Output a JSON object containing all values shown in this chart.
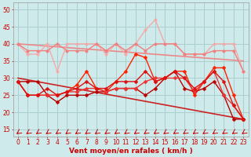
{
  "background_color": "#ceeaea",
  "grid_color": "#aacfcf",
  "x_labels": [
    "0",
    "1",
    "2",
    "3",
    "4",
    "5",
    "6",
    "7",
    "8",
    "9",
    "10",
    "11",
    "12",
    "13",
    "14",
    "15",
    "16",
    "17",
    "18",
    "19",
    "20",
    "21",
    "22",
    "23"
  ],
  "xlabel": "Vent moyen/en rafales ( km/h )",
  "ylabel_ticks": [
    15,
    20,
    25,
    30,
    35,
    40,
    45,
    50
  ],
  "ylim": [
    13,
    52
  ],
  "xlim": [
    -0.5,
    23.5
  ],
  "lines": [
    {
      "color": "#f4aaaa",
      "linewidth": 1.0,
      "marker": "o",
      "markersize": 2.5,
      "data": [
        40,
        37,
        37,
        40,
        32,
        40,
        40,
        40,
        40,
        37,
        40,
        37,
        40,
        44,
        47,
        40,
        40,
        37,
        37,
        37,
        40,
        40,
        40,
        32
      ]
    },
    {
      "color": "#f08080",
      "linewidth": 1.0,
      "marker": "o",
      "markersize": 2.5,
      "data": [
        40,
        38,
        38,
        38,
        40,
        38,
        38,
        38,
        40,
        38,
        40,
        38,
        40,
        38,
        40,
        40,
        40,
        37,
        37,
        37,
        38,
        38,
        38,
        32
      ]
    },
    {
      "color": "#cc2222",
      "linewidth": 1.2,
      "marker": "none",
      "markersize": 0,
      "data": [
        30,
        null,
        null,
        null,
        null,
        null,
        null,
        null,
        null,
        null,
        null,
        null,
        null,
        null,
        null,
        null,
        null,
        null,
        null,
        null,
        null,
        null,
        null,
        18
      ]
    },
    {
      "color": "#ee8888",
      "linewidth": 1.2,
      "marker": "none",
      "markersize": 0,
      "data": [
        40,
        null,
        null,
        null,
        null,
        null,
        null,
        null,
        null,
        null,
        null,
        null,
        null,
        null,
        null,
        null,
        null,
        null,
        null,
        null,
        null,
        null,
        null,
        35
      ]
    },
    {
      "color": "#ff2200",
      "linewidth": 1.0,
      "marker": "D",
      "markersize": 2.5,
      "data": [
        29,
        25,
        25,
        25,
        25,
        26,
        28,
        32,
        27,
        26,
        29,
        32,
        37,
        36,
        29,
        30,
        32,
        32,
        25,
        29,
        33,
        33,
        25,
        18
      ]
    },
    {
      "color": "#bb0000",
      "linewidth": 1.0,
      "marker": "D",
      "markersize": 2.5,
      "data": [
        29,
        29,
        29,
        25,
        23,
        25,
        25,
        25,
        26,
        26,
        27,
        27,
        27,
        25,
        27,
        30,
        32,
        27,
        26,
        27,
        29,
        25,
        18,
        18
      ]
    },
    {
      "color": "#ee3333",
      "linewidth": 1.0,
      "marker": "D",
      "markersize": 2.5,
      "data": [
        29,
        25,
        25,
        25,
        25,
        26,
        26,
        27,
        27,
        26,
        27,
        27,
        27,
        29,
        30,
        30,
        30,
        30,
        26,
        29,
        32,
        25,
        22,
        18
      ]
    },
    {
      "color": "#dd1111",
      "linewidth": 1.0,
      "marker": "D",
      "markersize": 2.5,
      "data": [
        29,
        25,
        25,
        27,
        25,
        26,
        27,
        29,
        27,
        27,
        29,
        29,
        29,
        32,
        29,
        30,
        32,
        30,
        27,
        29,
        32,
        29,
        22,
        18
      ]
    }
  ],
  "wind_arrows_color": "#cc0000",
  "title_color": "#cc0000",
  "tick_fontsize": 5.5,
  "xlabel_fontsize": 6.5
}
